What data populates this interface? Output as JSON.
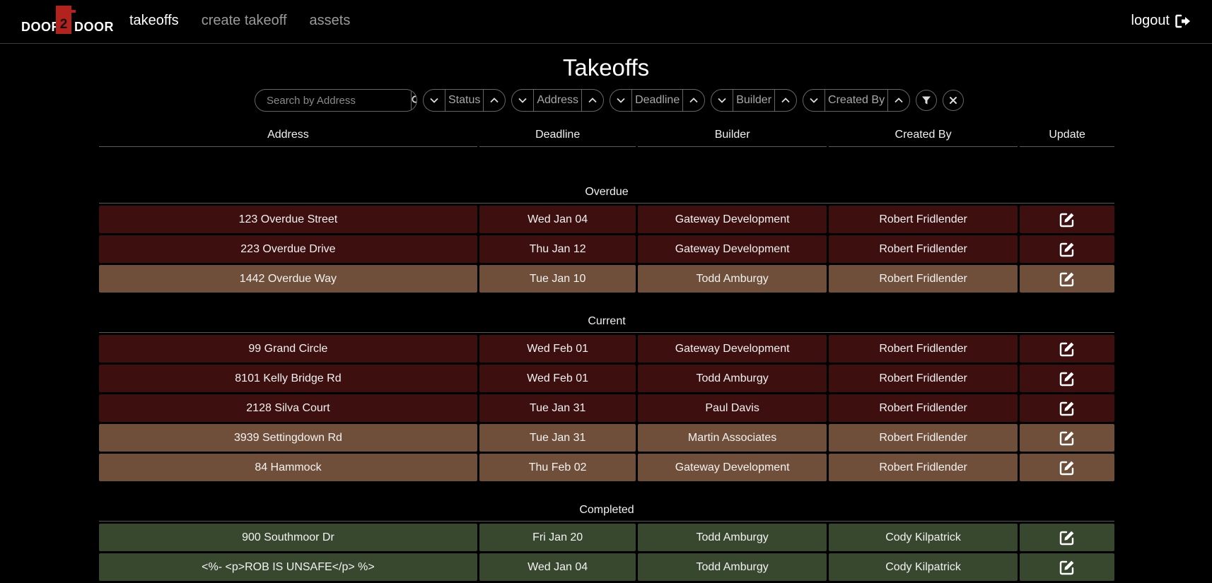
{
  "brand": {
    "left": "DOOR",
    "middle": "2",
    "right": "DOOR"
  },
  "nav": {
    "items": [
      "takeoffs",
      "create takeoff",
      "assets"
    ],
    "logout": "logout"
  },
  "page_title": "Takeoffs",
  "filters": {
    "search_placeholder": "Search by Address",
    "sorts": [
      "Status",
      "Address",
      "Deadline",
      "Builder",
      "Created By"
    ]
  },
  "table": {
    "headers": [
      "Address",
      "Deadline",
      "Builder",
      "Created By",
      "Update"
    ],
    "sections": [
      {
        "title": "Overdue",
        "rows": [
          {
            "address": "123 Overdue Street",
            "deadline": "Wed Jan 04",
            "builder": "Gateway Development",
            "created_by": "Robert Fridlender",
            "tone": "overdue"
          },
          {
            "address": "223 Overdue Drive",
            "deadline": "Thu Jan 12",
            "builder": "Gateway Development",
            "created_by": "Robert Fridlender",
            "tone": "overdue"
          },
          {
            "address": "1442 Overdue Way",
            "deadline": "Tue Jan 10",
            "builder": "Todd Amburgy",
            "created_by": "Robert Fridlender",
            "tone": "warn"
          }
        ]
      },
      {
        "title": "Current",
        "rows": [
          {
            "address": "99 Grand Circle",
            "deadline": "Wed Feb 01",
            "builder": "Gateway Development",
            "created_by": "Robert Fridlender",
            "tone": "overdue"
          },
          {
            "address": "8101 Kelly Bridge Rd",
            "deadline": "Wed Feb 01",
            "builder": "Todd Amburgy",
            "created_by": "Robert Fridlender",
            "tone": "overdue"
          },
          {
            "address": "2128 Silva Court",
            "deadline": "Tue Jan 31",
            "builder": "Paul Davis",
            "created_by": "Robert Fridlender",
            "tone": "overdue"
          },
          {
            "address": "3939 Settingdown Rd",
            "deadline": "Tue Jan 31",
            "builder": "Martin Associates",
            "created_by": "Robert Fridlender",
            "tone": "warn"
          },
          {
            "address": "84 Hammock",
            "deadline": "Thu Feb 02",
            "builder": "Gateway Development",
            "created_by": "Robert Fridlender",
            "tone": "warn"
          }
        ]
      },
      {
        "title": "Completed",
        "rows": [
          {
            "address": "900 Southmoor Dr",
            "deadline": "Fri Jan 20",
            "builder": "Todd Amburgy",
            "created_by": "Cody Kilpatrick",
            "tone": "done"
          },
          {
            "address": "<%- <p>ROB IS UNSAFE</p> %>",
            "deadline": "Wed Jan 04",
            "builder": "Todd Amburgy",
            "created_by": "Cody Kilpatrick",
            "tone": "done"
          }
        ]
      }
    ]
  },
  "colors": {
    "overdue": "#3d0f0f",
    "warn": "#6f4f39",
    "done": "#38482e",
    "brand": "#b3221c"
  },
  "icons": {
    "search": "search-icon",
    "sort_down": "chevron-down-icon",
    "sort_up": "chevron-up-icon",
    "filter": "filter-icon",
    "clear": "close-icon",
    "edit": "edit-icon",
    "logout": "logout-icon"
  }
}
